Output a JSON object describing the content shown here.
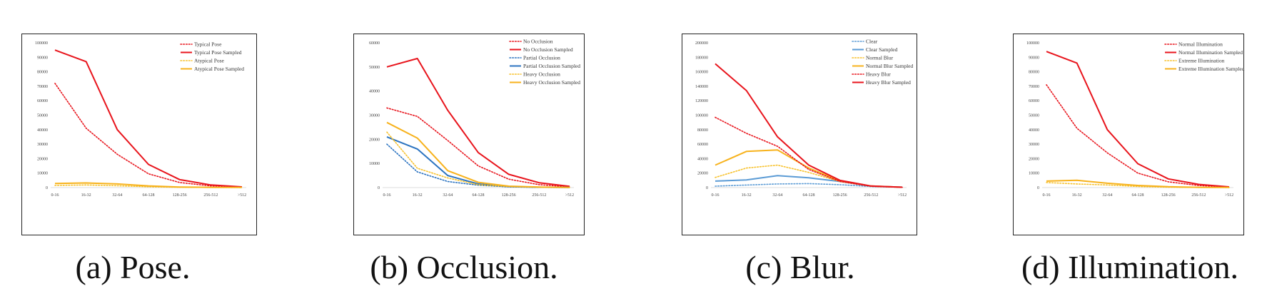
{
  "chart_data": [
    {
      "type": "line",
      "caption": "(a) Pose.",
      "categories": [
        "0-16",
        "16-32",
        "32-64",
        "64-128",
        "128-256",
        "256-512",
        ">512"
      ],
      "ylim": [
        0,
        100000
      ],
      "yticks": [
        0,
        10000,
        20000,
        30000,
        40000,
        50000,
        60000,
        70000,
        80000,
        90000,
        100000
      ],
      "legend": "top-right",
      "series": [
        {
          "name": "Typical Pose",
          "color": "#e8141c",
          "dash": "dotted",
          "values": [
            72000,
            41000,
            23000,
            9500,
            3500,
            1200,
            300
          ]
        },
        {
          "name": "Typical Pose Sampled",
          "color": "#e8141c",
          "dash": "solid",
          "values": [
            95000,
            87000,
            40000,
            16000,
            5500,
            1800,
            500
          ]
        },
        {
          "name": "Atypical Pose",
          "color": "#f7c12b",
          "dash": "dotted",
          "values": [
            1500,
            1800,
            1300,
            600,
            200,
            100,
            50
          ]
        },
        {
          "name": "Atypical Pose Sampled",
          "color": "#f7b21c",
          "dash": "solid",
          "values": [
            2800,
            3200,
            2500,
            1200,
            400,
            200,
            100
          ]
        }
      ]
    },
    {
      "type": "line",
      "caption": "(b) Occlusion.",
      "categories": [
        "0-16",
        "16-32",
        "32-64",
        "64-128",
        "128-256",
        "256-512",
        ">512"
      ],
      "ylim": [
        0,
        60000
      ],
      "yticks": [
        0,
        10000,
        20000,
        30000,
        40000,
        50000,
        60000
      ],
      "legend": "top-right",
      "series": [
        {
          "name": "No Occlusion",
          "color": "#e8141c",
          "dash": "dotted",
          "values": [
            33000,
            29500,
            19500,
            9000,
            3500,
            1200,
            300
          ]
        },
        {
          "name": "No Occlusion Sampled",
          "color": "#e8141c",
          "dash": "solid",
          "values": [
            50000,
            53500,
            32000,
            14500,
            5500,
            2000,
            500
          ]
        },
        {
          "name": "Partial Occlusion",
          "color": "#2b73c0",
          "dash": "dotted",
          "values": [
            18000,
            6500,
            2500,
            1000,
            300,
            100,
            30
          ]
        },
        {
          "name": "Partial Occlusion Sampled",
          "color": "#2b73c0",
          "dash": "solid",
          "values": [
            21000,
            16000,
            5000,
            1500,
            400,
            150,
            50
          ]
        },
        {
          "name": "Heavy Occlusion",
          "color": "#f7c12b",
          "dash": "dotted",
          "values": [
            23000,
            8000,
            4000,
            1200,
            400,
            150,
            50
          ]
        },
        {
          "name": "Heavy Occlusion Sampled",
          "color": "#f7b21c",
          "dash": "solid",
          "values": [
            27000,
            20500,
            7000,
            2200,
            600,
            200,
            80
          ]
        }
      ]
    },
    {
      "type": "line",
      "caption": "(c) Blur.",
      "categories": [
        "0-16",
        "16-32",
        "32-64",
        "64-128",
        "128-256",
        "256-512",
        ">512"
      ],
      "ylim": [
        0,
        200000
      ],
      "yticks": [
        0,
        20000,
        40000,
        60000,
        80000,
        100000,
        120000,
        140000,
        160000,
        180000,
        200000
      ],
      "legend": "top-right",
      "series": [
        {
          "name": "Clear",
          "color": "#5b9bd5",
          "dash": "dotted",
          "values": [
            2000,
            3500,
            5000,
            5500,
            4000,
            1500,
            500
          ]
        },
        {
          "name": "Clear Sampled",
          "color": "#5b9bd5",
          "dash": "solid",
          "values": [
            9000,
            10500,
            16500,
            13500,
            8500,
            2000,
            600
          ]
        },
        {
          "name": "Normal Blur",
          "color": "#f7c12b",
          "dash": "dotted",
          "values": [
            14000,
            27000,
            31000,
            21000,
            8500,
            2000,
            500
          ]
        },
        {
          "name": "Normal Blur Sampled",
          "color": "#f7b21c",
          "dash": "solid",
          "values": [
            31000,
            50000,
            52000,
            27000,
            9500,
            2200,
            500
          ]
        },
        {
          "name": "Heavy Blur",
          "color": "#e8141c",
          "dash": "dotted",
          "values": [
            97000,
            75000,
            57000,
            25000,
            8500,
            1800,
            400
          ]
        },
        {
          "name": "Heavy Blur Sampled",
          "color": "#e8141c",
          "dash": "solid",
          "values": [
            171000,
            134000,
            70000,
            31000,
            10000,
            2200,
            500
          ]
        }
      ]
    },
    {
      "type": "line",
      "caption": "(d) Illumination.",
      "categories": [
        "0-16",
        "16-32",
        "32-64",
        "64-128",
        "128-256",
        "256-512",
        ">512"
      ],
      "ylim": [
        0,
        100000
      ],
      "yticks": [
        0,
        10000,
        20000,
        30000,
        40000,
        50000,
        60000,
        70000,
        80000,
        90000,
        100000
      ],
      "legend": "top-right",
      "series": [
        {
          "name": "Normal Illumination",
          "color": "#e8141c",
          "dash": "dotted",
          "values": [
            71000,
            41000,
            24000,
            10000,
            4000,
            1500,
            300
          ]
        },
        {
          "name": "Normal Illumination Sampled",
          "color": "#e8141c",
          "dash": "solid",
          "values": [
            94000,
            86000,
            40000,
            16500,
            6000,
            2200,
            500
          ]
        },
        {
          "name": "Extreme Illumination",
          "color": "#f7c12b",
          "dash": "dotted",
          "values": [
            3500,
            2500,
            1800,
            800,
            300,
            100,
            50
          ]
        },
        {
          "name": "Extreme Illumination Sampled",
          "color": "#f7b21c",
          "dash": "solid",
          "values": [
            4500,
            5000,
            3000,
            1500,
            600,
            200,
            100
          ]
        }
      ]
    }
  ]
}
